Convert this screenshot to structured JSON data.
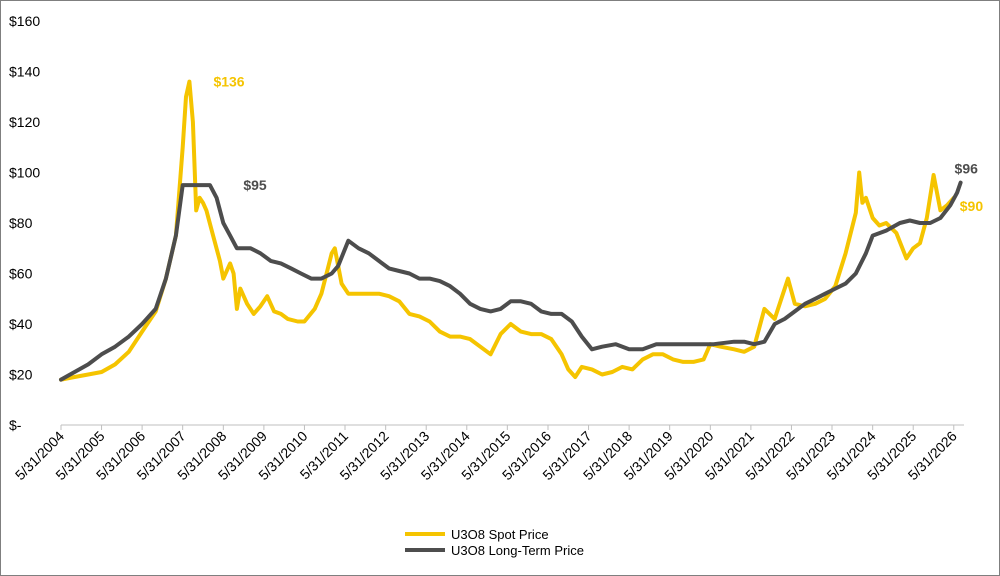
{
  "chart_data": {
    "type": "line",
    "title": "",
    "xlabel": "",
    "ylabel": "",
    "ylim": [
      0,
      160
    ],
    "y_tick_values": [
      0,
      20,
      40,
      60,
      80,
      100,
      120,
      140,
      160
    ],
    "y_tick_labels": [
      "$-",
      "$20",
      "$40",
      "$60",
      "$80",
      "$100",
      "$120",
      "$140",
      "$160"
    ],
    "x_axis_start": "2004-05-31",
    "x_axis_end": "2026-08-31",
    "x_tick_dates": [
      "2004-05-31",
      "2005-05-31",
      "2006-05-31",
      "2007-05-31",
      "2008-05-31",
      "2009-05-31",
      "2010-05-31",
      "2011-05-31",
      "2012-05-31",
      "2013-05-31",
      "2014-05-31",
      "2015-05-31",
      "2016-05-31",
      "2017-05-31",
      "2018-05-31",
      "2019-05-31",
      "2020-05-31",
      "2021-05-31",
      "2022-05-31",
      "2023-05-31",
      "2024-05-31",
      "2025-05-31",
      "2026-05-31"
    ],
    "x_tick_labels": [
      "5/31/2004",
      "5/31/2005",
      "5/31/2006",
      "5/31/2007",
      "5/31/2008",
      "5/31/2009",
      "5/31/2010",
      "5/31/2011",
      "5/31/2012",
      "5/31/2013",
      "5/31/2014",
      "5/31/2015",
      "5/31/2016",
      "5/31/2017",
      "5/31/2018",
      "5/31/2019",
      "5/31/2020",
      "5/31/2021",
      "5/31/2022",
      "5/31/2023",
      "5/31/2024",
      "5/31/2025",
      "5/31/2026"
    ],
    "grid": false,
    "legend": "bottom-center",
    "series": [
      {
        "name": "U3O8 Spot Price",
        "color": "#F5C400",
        "x": [
          "2004-05-31",
          "2004-09-30",
          "2005-01-31",
          "2005-05-31",
          "2005-09-30",
          "2006-01-31",
          "2006-05-31",
          "2006-09-30",
          "2006-12-31",
          "2007-03-31",
          "2007-05-31",
          "2007-06-30",
          "2007-07-31",
          "2007-08-31",
          "2007-09-30",
          "2007-10-31",
          "2007-11-30",
          "2007-12-31",
          "2008-02-29",
          "2008-04-30",
          "2008-05-31",
          "2008-07-31",
          "2008-08-31",
          "2008-09-30",
          "2008-10-31",
          "2008-12-31",
          "2009-02-28",
          "2009-04-30",
          "2009-06-30",
          "2009-08-31",
          "2009-10-31",
          "2009-12-31",
          "2010-03-31",
          "2010-05-31",
          "2010-08-31",
          "2010-10-31",
          "2011-01-31",
          "2011-02-28",
          "2011-04-30",
          "2011-06-30",
          "2011-09-30",
          "2011-12-31",
          "2012-03-31",
          "2012-06-30",
          "2012-09-30",
          "2012-12-31",
          "2013-03-31",
          "2013-06-30",
          "2013-09-30",
          "2013-12-31",
          "2014-03-31",
          "2014-06-30",
          "2014-09-30",
          "2014-12-31",
          "2015-03-31",
          "2015-06-30",
          "2015-09-30",
          "2015-12-31",
          "2016-03-31",
          "2016-06-30",
          "2016-09-30",
          "2016-11-30",
          "2017-01-31",
          "2017-03-31",
          "2017-06-30",
          "2017-09-30",
          "2017-12-31",
          "2018-03-31",
          "2018-06-30",
          "2018-09-30",
          "2018-12-31",
          "2019-03-31",
          "2019-06-30",
          "2019-09-30",
          "2019-12-31",
          "2020-03-31",
          "2020-05-31",
          "2020-08-31",
          "2020-12-31",
          "2021-03-31",
          "2021-06-30",
          "2021-09-30",
          "2021-12-31",
          "2022-04-30",
          "2022-06-30",
          "2022-09-30",
          "2022-12-31",
          "2023-03-31",
          "2023-06-30",
          "2023-09-30",
          "2023-12-31",
          "2024-01-31",
          "2024-02-29",
          "2024-03-31",
          "2024-05-31",
          "2024-07-31",
          "2024-09-30",
          "2024-12-31",
          "2025-03-31",
          "2025-05-31",
          "2025-07-31",
          "2025-09-30",
          "2025-11-30",
          "2026-01-31",
          "2026-03-31",
          "2026-05-31"
        ],
        "y": [
          18,
          19,
          20,
          21,
          24,
          29,
          37,
          45,
          58,
          75,
          110,
          130,
          136,
          120,
          85,
          90,
          88,
          85,
          75,
          65,
          58,
          64,
          60,
          46,
          54,
          48,
          44,
          47,
          51,
          45,
          44,
          42,
          41,
          41,
          46,
          52,
          68,
          70,
          56,
          52,
          52,
          52,
          52,
          51,
          49,
          44,
          43,
          41,
          37,
          35,
          35,
          34,
          31,
          28,
          36,
          40,
          37,
          36,
          36,
          34,
          28,
          22,
          19,
          23,
          22,
          20,
          21,
          23,
          22,
          26,
          28,
          28,
          26,
          25,
          25,
          26,
          32,
          31,
          30,
          29,
          31,
          46,
          42,
          58,
          48,
          47,
          48,
          50,
          55,
          68,
          84,
          100,
          88,
          90,
          82,
          79,
          80,
          76,
          66,
          70,
          72,
          82,
          99,
          85,
          87,
          90
        ]
      },
      {
        "name": "U3O8 Long-Term Price",
        "color": "#4D4D4D",
        "x": [
          "2004-05-31",
          "2004-09-30",
          "2005-01-31",
          "2005-05-31",
          "2005-09-30",
          "2006-01-31",
          "2006-05-31",
          "2006-09-30",
          "2006-12-31",
          "2007-03-31",
          "2007-05-31",
          "2007-09-30",
          "2008-01-31",
          "2008-03-31",
          "2008-05-31",
          "2008-07-31",
          "2008-09-30",
          "2009-01-31",
          "2009-04-30",
          "2009-07-31",
          "2009-10-31",
          "2010-01-31",
          "2010-04-30",
          "2010-07-31",
          "2010-10-31",
          "2011-01-31",
          "2011-03-31",
          "2011-06-30",
          "2011-09-30",
          "2011-12-31",
          "2012-03-31",
          "2012-06-30",
          "2012-09-30",
          "2012-12-31",
          "2013-03-31",
          "2013-06-30",
          "2013-09-30",
          "2013-12-31",
          "2014-03-31",
          "2014-06-30",
          "2014-09-30",
          "2014-12-31",
          "2015-03-31",
          "2015-06-30",
          "2015-09-30",
          "2015-12-31",
          "2016-03-31",
          "2016-06-30",
          "2016-09-30",
          "2016-12-31",
          "2017-03-31",
          "2017-06-30",
          "2017-09-30",
          "2018-01-31",
          "2018-05-31",
          "2018-09-30",
          "2019-01-31",
          "2019-06-30",
          "2019-12-31",
          "2020-06-30",
          "2020-12-31",
          "2021-03-31",
          "2021-06-30",
          "2021-09-30",
          "2021-12-31",
          "2022-03-31",
          "2022-06-30",
          "2022-09-30",
          "2022-12-31",
          "2023-03-31",
          "2023-06-30",
          "2023-09-30",
          "2023-12-31",
          "2024-03-31",
          "2024-05-31",
          "2024-09-30",
          "2025-01-31",
          "2025-04-30",
          "2025-07-31",
          "2025-10-31",
          "2026-01-31",
          "2026-04-30",
          "2026-06-30",
          "2026-07-31"
        ],
        "y": [
          18,
          21,
          24,
          28,
          31,
          35,
          40,
          46,
          58,
          75,
          95,
          95,
          95,
          90,
          80,
          75,
          70,
          70,
          68,
          65,
          64,
          62,
          60,
          58,
          58,
          60,
          63,
          73,
          70,
          68,
          65,
          62,
          61,
          60,
          58,
          58,
          57,
          55,
          52,
          48,
          46,
          45,
          46,
          49,
          49,
          48,
          45,
          44,
          44,
          41,
          35,
          30,
          31,
          32,
          30,
          30,
          32,
          32,
          32,
          32,
          33,
          33,
          32,
          33,
          40,
          42,
          45,
          48,
          50,
          52,
          54,
          56,
          60,
          68,
          75,
          77,
          80,
          81,
          80,
          80,
          82,
          87,
          92,
          96
        ]
      }
    ],
    "annotations": [
      {
        "text": "$136",
        "color": "#F5C400",
        "x": "2007-07-31",
        "y": 136
      },
      {
        "text": "$95",
        "color": "#4D4D4D",
        "x": "2008-05-31",
        "y": 95
      },
      {
        "text": "$96",
        "color": "#4D4D4D",
        "x": "2026-07-31",
        "y": 96
      },
      {
        "text": "$90",
        "color": "#F5C400",
        "x": "2026-05-31",
        "y": 90
      }
    ]
  }
}
